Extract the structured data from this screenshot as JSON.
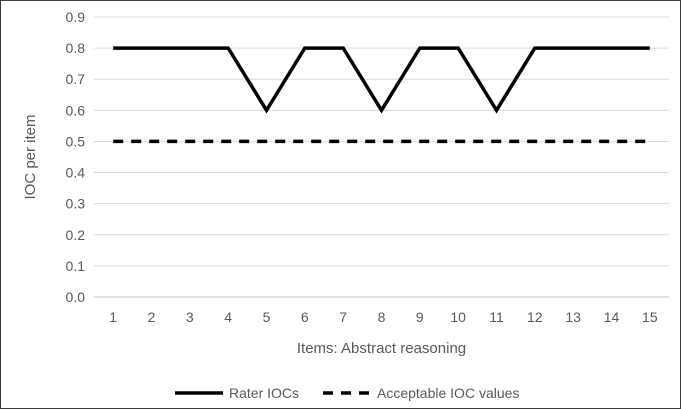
{
  "chart_data": {
    "type": "line",
    "title": "",
    "xlabel": "Items: Abstract reasoning",
    "ylabel": "IOC per item",
    "x": [
      "1",
      "2",
      "3",
      "4",
      "5",
      "6",
      "7",
      "8",
      "9",
      "10",
      "11",
      "12",
      "13",
      "14",
      "15"
    ],
    "ylim": [
      0,
      0.9
    ],
    "yticks": [
      "0.0",
      "0.1",
      "0.2",
      "0.3",
      "0.4",
      "0.5",
      "0.6",
      "0.7",
      "0.8",
      "0.9"
    ],
    "grid": true,
    "legend_position": "bottom",
    "series": [
      {
        "name": "Rater IOCs",
        "style": "solid",
        "color": "#000000",
        "values": [
          0.8,
          0.8,
          0.8,
          0.8,
          0.6,
          0.8,
          0.8,
          0.6,
          0.8,
          0.8,
          0.6,
          0.8,
          0.8,
          0.8,
          0.8
        ]
      },
      {
        "name": "Acceptable IOC values",
        "style": "dashed",
        "color": "#000000",
        "values": [
          0.5,
          0.5,
          0.5,
          0.5,
          0.5,
          0.5,
          0.5,
          0.5,
          0.5,
          0.5,
          0.5,
          0.5,
          0.5,
          0.5,
          0.5
        ]
      }
    ],
    "colors": {
      "grid": "#d9d9d9",
      "axis": "#bfbfbf",
      "text": "#595959"
    }
  }
}
